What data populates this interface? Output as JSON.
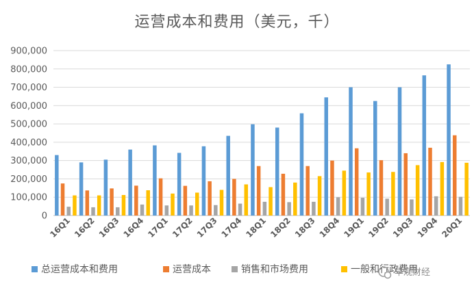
{
  "chart_data": {
    "type": "bar",
    "title": "运营成本和费用（美元，千）",
    "categories": [
      "16Q1",
      "16Q2",
      "16Q3",
      "16Q4",
      "17Q1",
      "17Q2",
      "17Q3",
      "17Q4",
      "18Q1",
      "18Q2",
      "18Q3",
      "18Q4",
      "19Q1",
      "19Q2",
      "19Q3",
      "19Q4",
      "20Q1"
    ],
    "series": [
      {
        "name": "总运营成本和费用",
        "color": "#5B9BD5",
        "values": [
          330000,
          290000,
          305000,
          360000,
          383000,
          342000,
          378000,
          435000,
          498000,
          480000,
          558000,
          645000,
          700000,
          625000,
          700000,
          765000,
          825000
        ]
      },
      {
        "name": "运营成本",
        "color": "#ED7D31",
        "values": [
          175000,
          137000,
          148000,
          163000,
          203000,
          162000,
          187000,
          200000,
          270000,
          228000,
          270000,
          300000,
          367000,
          302000,
          340000,
          370000,
          438000
        ]
      },
      {
        "name": "销售和市场费用",
        "color": "#A5A5A5",
        "values": [
          48000,
          45000,
          45000,
          60000,
          55000,
          55000,
          57000,
          65000,
          75000,
          73000,
          75000,
          100000,
          97000,
          92000,
          88000,
          105000,
          102000
        ]
      },
      {
        "name": "一般和行政费用",
        "color": "#FFC000",
        "values": [
          110000,
          110000,
          112000,
          138000,
          120000,
          125000,
          140000,
          170000,
          155000,
          180000,
          215000,
          245000,
          235000,
          238000,
          275000,
          292000,
          288000
        ]
      }
    ],
    "y_ticks": [
      "0",
      "100,000",
      "200,000",
      "300,000",
      "400,000",
      "500,000",
      "600,000",
      "700,000",
      "800,000",
      "900,000"
    ],
    "ylim": [
      0,
      900000
    ],
    "grid": true,
    "legend_position": "bottom"
  },
  "watermark_text": "早观财经"
}
